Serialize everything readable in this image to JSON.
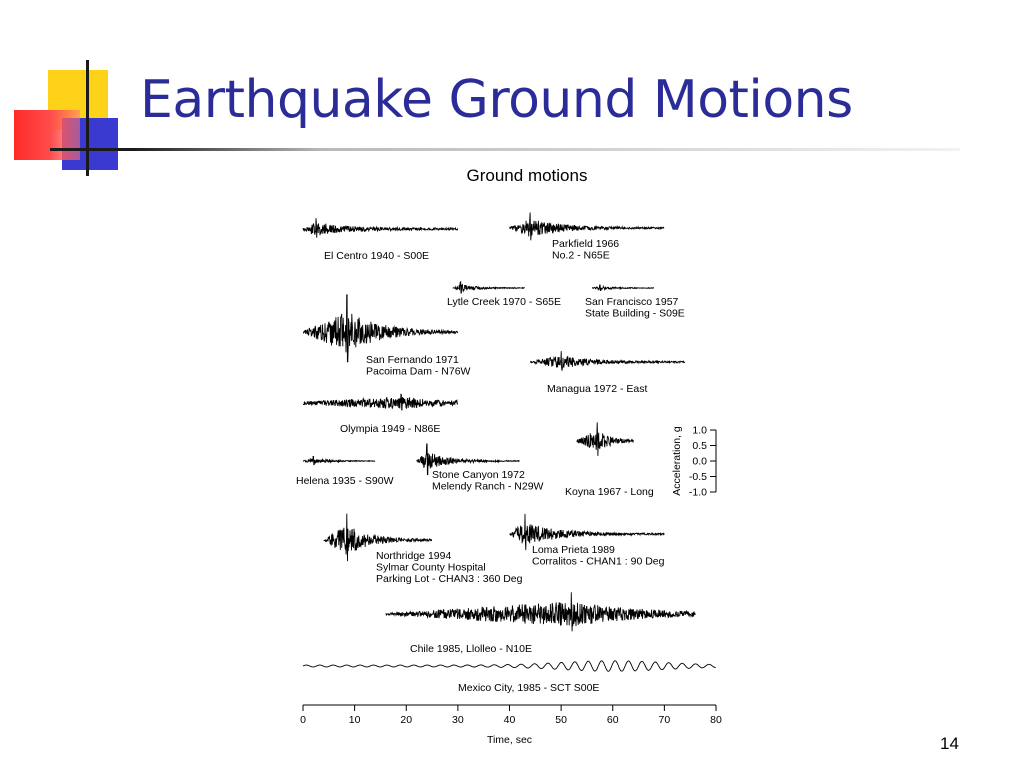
{
  "slide": {
    "title": "Earthquake Ground Motions",
    "page_number": "14",
    "colors": {
      "title": "#2c2c99",
      "accent_yellow": "#ffd21a",
      "accent_blue": "#3a3ad0",
      "accent_red": "#ff2a2a"
    }
  },
  "chart_data": {
    "type": "line",
    "title": "Ground motions",
    "xlabel": "Time, sec",
    "xlim": [
      0,
      80
    ],
    "x_ticks": [
      0,
      10,
      20,
      30,
      40,
      50,
      60,
      70,
      80
    ],
    "ylabel": "Acceleration, g",
    "ylim": [
      -1.0,
      1.0
    ],
    "y_ticks": [
      {
        "value": 1.0,
        "label": "1.0"
      },
      {
        "value": 0.5,
        "label": "0.5"
      },
      {
        "value": 0.0,
        "label": "0.0"
      },
      {
        "value": -0.5,
        "label": "-0.5"
      },
      {
        "value": -1.0,
        "label": "-1.0"
      }
    ],
    "series": [
      {
        "name": "el-centro",
        "label_lines": [
          "El Centro 1940 - S00E"
        ],
        "start": 0,
        "end": 30,
        "peak_time": 2.5,
        "peak_acc": 0.35,
        "baseline_acc": 0.03
      },
      {
        "name": "parkfield",
        "label_lines": [
          "Parkfield 1966",
          "No.2 - N65E"
        ],
        "start": 40,
        "end": 70,
        "peak_time": 44,
        "peak_acc": 0.5,
        "baseline_acc": 0.02
      },
      {
        "name": "lytle-creek",
        "label_lines": [
          "Lytle Creek 1970 - S65E"
        ],
        "start": 29,
        "end": 43,
        "peak_time": 30.5,
        "peak_acc": 0.2,
        "baseline_acc": 0.01
      },
      {
        "name": "san-francisco",
        "label_lines": [
          "San Francisco 1957",
          "State Building - S09E"
        ],
        "start": 56,
        "end": 68,
        "peak_time": 57.5,
        "peak_acc": 0.1,
        "baseline_acc": 0.01
      },
      {
        "name": "san-fernando",
        "label_lines": [
          "San Fernando 1971",
          "Pacoima Dam - N76W"
        ],
        "start": 0,
        "end": 30,
        "peak_time": 8.5,
        "peak_acc": 1.2,
        "baseline_acc": 0.02
      },
      {
        "name": "managua",
        "label_lines": [
          "Managua 1972 - East"
        ],
        "start": 44,
        "end": 74,
        "peak_time": 50,
        "peak_acc": 0.35,
        "baseline_acc": 0.02
      },
      {
        "name": "olympia",
        "label_lines": [
          "Olympia 1949 - N86E"
        ],
        "start": 0,
        "end": 30,
        "peak_time": 19,
        "peak_acc": 0.28,
        "baseline_acc": 0.05
      },
      {
        "name": "helena",
        "label_lines": [
          "Helena 1935 - S90W"
        ],
        "start": 0,
        "end": 14,
        "peak_time": 2,
        "peak_acc": 0.15,
        "baseline_acc": 0.01
      },
      {
        "name": "stone-canyon",
        "label_lines": [
          "Stone Canyon 1972",
          "Melendy Ranch - N29W"
        ],
        "start": 22,
        "end": 42,
        "peak_time": 24,
        "peak_acc": 0.55,
        "baseline_acc": 0.01
      },
      {
        "name": "koyna",
        "label_lines": [
          "Koyna 1967 - Long"
        ],
        "start": 53,
        "end": 64,
        "peak_time": 57,
        "peak_acc": 0.6,
        "baseline_acc": 0.03
      },
      {
        "name": "northridge",
        "label_lines": [
          "Northridge 1994",
          "Sylmar County Hospital",
          "Parking Lot - CHAN3 : 360 Deg"
        ],
        "start": 4,
        "end": 25,
        "peak_time": 8.5,
        "peak_acc": 0.85,
        "baseline_acc": 0.02
      },
      {
        "name": "loma-prieta",
        "label_lines": [
          "Loma Prieta 1989",
          "Corralitos - CHAN1 : 90 Deg"
        ],
        "start": 40,
        "end": 70,
        "peak_time": 43,
        "peak_acc": 0.65,
        "baseline_acc": 0.02
      },
      {
        "name": "chile",
        "label_lines": [
          "Chile 1985, Llolleo - N10E"
        ],
        "start": 16,
        "end": 76,
        "peak_time": 52,
        "peak_acc": 0.7,
        "baseline_acc": 0.03
      },
      {
        "name": "mexico-city",
        "label_lines": [
          "Mexico City, 1985 - SCT S00E"
        ],
        "start": 0,
        "end": 80,
        "peak_time": 60,
        "peak_acc": 0.17,
        "baseline_acc": 0.03
      }
    ]
  }
}
